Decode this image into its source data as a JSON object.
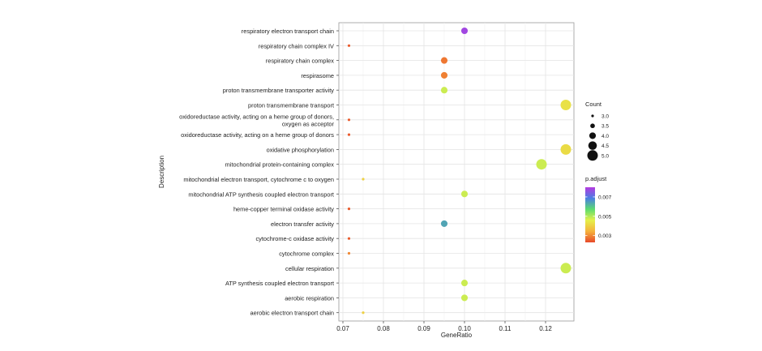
{
  "chart_data": {
    "type": "scatter",
    "title": "",
    "xlabel": "GeneRatio",
    "ylabel": "Description",
    "xlim": [
      0.069,
      0.127
    ],
    "x_ticks": [
      0.07,
      0.08,
      0.09,
      0.1,
      0.11,
      0.12
    ],
    "x_tick_labels": [
      "0.07",
      "0.08",
      "0.09",
      "0.10",
      "0.11",
      "0.12"
    ],
    "grid": true,
    "categories": [
      "respiratory electron transport chain",
      "respiratory chain complex IV",
      "respiratory chain complex",
      "respirasome",
      "proton transmembrane transporter activity",
      "proton transmembrane transport",
      "oxidoreductase activity, acting on a heme group of donors,\noxygen as acceptor",
      "oxidoreductase activity, acting on a heme group of donors",
      "oxidative phosphorylation",
      "mitochondrial protein-containing complex",
      "mitochondrial electron transport, cytochrome c to oxygen",
      "mitochondrial ATP synthesis coupled electron transport",
      "heme-copper terminal oxidase activity",
      "electron transfer activity",
      "cytochrome-c oxidase activity",
      "cytochrome complex",
      "cellular respiration",
      "ATP synthesis coupled electron transport",
      "aerobic respiration",
      "aerobic electron transport chain"
    ],
    "points": [
      {
        "category": "respiratory electron transport chain",
        "x": 0.1,
        "count": 4.0,
        "p_adjust": 0.0078
      },
      {
        "category": "respiratory chain complex IV",
        "x": 0.0715,
        "count": 3.0,
        "p_adjust": 0.0025
      },
      {
        "category": "respiratory chain complex",
        "x": 0.095,
        "count": 4.0,
        "p_adjust": 0.0028
      },
      {
        "category": "respirasome",
        "x": 0.095,
        "count": 4.0,
        "p_adjust": 0.0029
      },
      {
        "category": "proton transmembrane transporter activity",
        "x": 0.095,
        "count": 4.0,
        "p_adjust": 0.0048
      },
      {
        "category": "proton transmembrane transport",
        "x": 0.125,
        "count": 5.0,
        "p_adjust": 0.0043
      },
      {
        "category": "oxidoreductase activity, acting on a heme group of donors,\noxygen as acceptor",
        "x": 0.0715,
        "count": 3.0,
        "p_adjust": 0.0025
      },
      {
        "category": "oxidoreductase activity, acting on a heme group of donors",
        "x": 0.0715,
        "count": 3.0,
        "p_adjust": 0.0025
      },
      {
        "category": "oxidative phosphorylation",
        "x": 0.125,
        "count": 5.0,
        "p_adjust": 0.0042
      },
      {
        "category": "mitochondrial protein-containing complex",
        "x": 0.119,
        "count": 5.0,
        "p_adjust": 0.0048
      },
      {
        "category": "mitochondrial electron transport, cytochrome c to oxygen",
        "x": 0.075,
        "count": 3.0,
        "p_adjust": 0.004
      },
      {
        "category": "mitochondrial ATP synthesis coupled electron transport",
        "x": 0.1,
        "count": 4.0,
        "p_adjust": 0.0048
      },
      {
        "category": "heme-copper terminal oxidase activity",
        "x": 0.0715,
        "count": 3.0,
        "p_adjust": 0.0025
      },
      {
        "category": "electron transfer activity",
        "x": 0.095,
        "count": 4.0,
        "p_adjust": 0.0064
      },
      {
        "category": "cytochrome-c oxidase activity",
        "x": 0.0715,
        "count": 3.0,
        "p_adjust": 0.0025
      },
      {
        "category": "cytochrome complex",
        "x": 0.0715,
        "count": 3.0,
        "p_adjust": 0.003
      },
      {
        "category": "cellular respiration",
        "x": 0.125,
        "count": 5.0,
        "p_adjust": 0.0048
      },
      {
        "category": "ATP synthesis coupled electron transport",
        "x": 0.1,
        "count": 4.0,
        "p_adjust": 0.0048
      },
      {
        "category": "aerobic respiration",
        "x": 0.1,
        "count": 4.0,
        "p_adjust": 0.0048
      },
      {
        "category": "aerobic electron transport chain",
        "x": 0.075,
        "count": 3.0,
        "p_adjust": 0.004
      }
    ],
    "legend": {
      "placement": "right",
      "size": {
        "title": "Count",
        "values": [
          3.0,
          3.5,
          4.0,
          4.5,
          5.0
        ],
        "labels": [
          "3.0",
          "3.5",
          "4.0",
          "4.5",
          "5.0"
        ]
      },
      "color": {
        "title": "p.adjust",
        "range": [
          0.0023,
          0.008
        ],
        "ticks": [
          0.003,
          0.005,
          0.007
        ],
        "tick_labels": [
          "0.003",
          "0.005",
          "0.007"
        ],
        "gradient_low_to_high": [
          "#e8492a",
          "#f5b23c",
          "#e5f04a",
          "#5cdc6f",
          "#4a7ee3",
          "#b43be0"
        ]
      }
    }
  }
}
